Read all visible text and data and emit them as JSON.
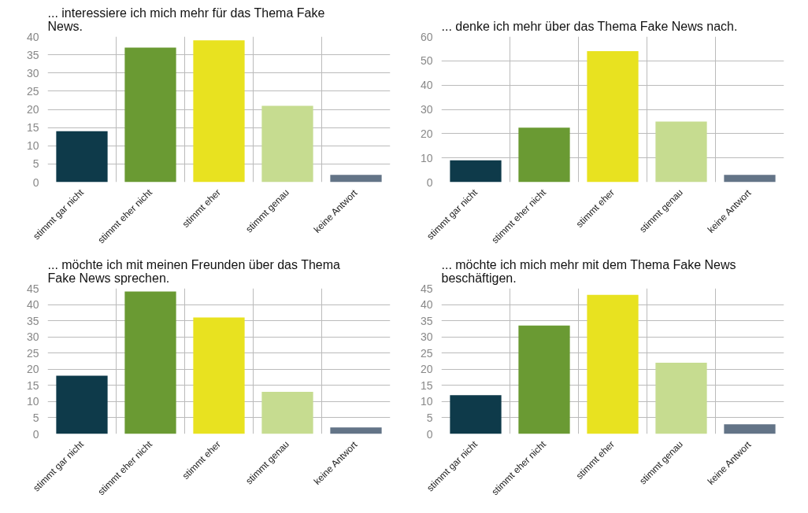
{
  "chart_data": [
    {
      "type": "bar",
      "title": "... interessiere ich mich mehr für das Thema Fake News.",
      "categories": [
        "stimmt gar nicht",
        "stimmt eher nicht",
        "stimmt eher",
        "stimmt genau",
        "keine Antwort"
      ],
      "values": [
        14,
        37,
        39,
        21,
        2
      ],
      "colors": [
        "#0e3a4a",
        "#6a9a33",
        "#e8e220",
        "#c6dc90",
        "#637487"
      ],
      "ylim": [
        0,
        40
      ],
      "yticks": [
        0,
        5,
        10,
        15,
        20,
        25,
        30,
        35,
        40
      ],
      "grid": true
    },
    {
      "type": "bar",
      "title": "... denke ich mehr über das Thema Fake News nach.",
      "categories": [
        "stimmt gar nicht",
        "stimmt eher nicht",
        "stimmt eher",
        "stimmt genau",
        "keine Antwort"
      ],
      "values": [
        9,
        22.5,
        54,
        25,
        3
      ],
      "colors": [
        "#0e3a4a",
        "#6a9a33",
        "#e8e220",
        "#c6dc90",
        "#637487"
      ],
      "ylim": [
        0,
        60
      ],
      "yticks": [
        0,
        10,
        20,
        30,
        40,
        50,
        60
      ],
      "grid": true
    },
    {
      "type": "bar",
      "title": "... möchte ich mit meinen Freunden über das Thema Fake News sprechen.",
      "categories": [
        "stimmt gar nicht",
        "stimmt eher nicht",
        "stimmt eher",
        "stimmt genau",
        "keine Antwort"
      ],
      "values": [
        18,
        44,
        36,
        13,
        2
      ],
      "colors": [
        "#0e3a4a",
        "#6a9a33",
        "#e8e220",
        "#c6dc90",
        "#637487"
      ],
      "ylim": [
        0,
        45
      ],
      "yticks": [
        0,
        5,
        10,
        15,
        20,
        25,
        30,
        35,
        40,
        45
      ],
      "grid": true
    },
    {
      "type": "bar",
      "title": "... möchte ich mich mehr mit dem Thema Fake News beschäftigen.",
      "categories": [
        "stimmt gar nicht",
        "stimmt eher nicht",
        "stimmt eher",
        "stimmt genau",
        "keine Antwort"
      ],
      "values": [
        12,
        33.5,
        43,
        22,
        3
      ],
      "colors": [
        "#0e3a4a",
        "#6a9a33",
        "#e8e220",
        "#c6dc90",
        "#637487"
      ],
      "ylim": [
        0,
        45
      ],
      "yticks": [
        0,
        5,
        10,
        15,
        20,
        25,
        30,
        35,
        40,
        45
      ],
      "grid": true
    }
  ]
}
